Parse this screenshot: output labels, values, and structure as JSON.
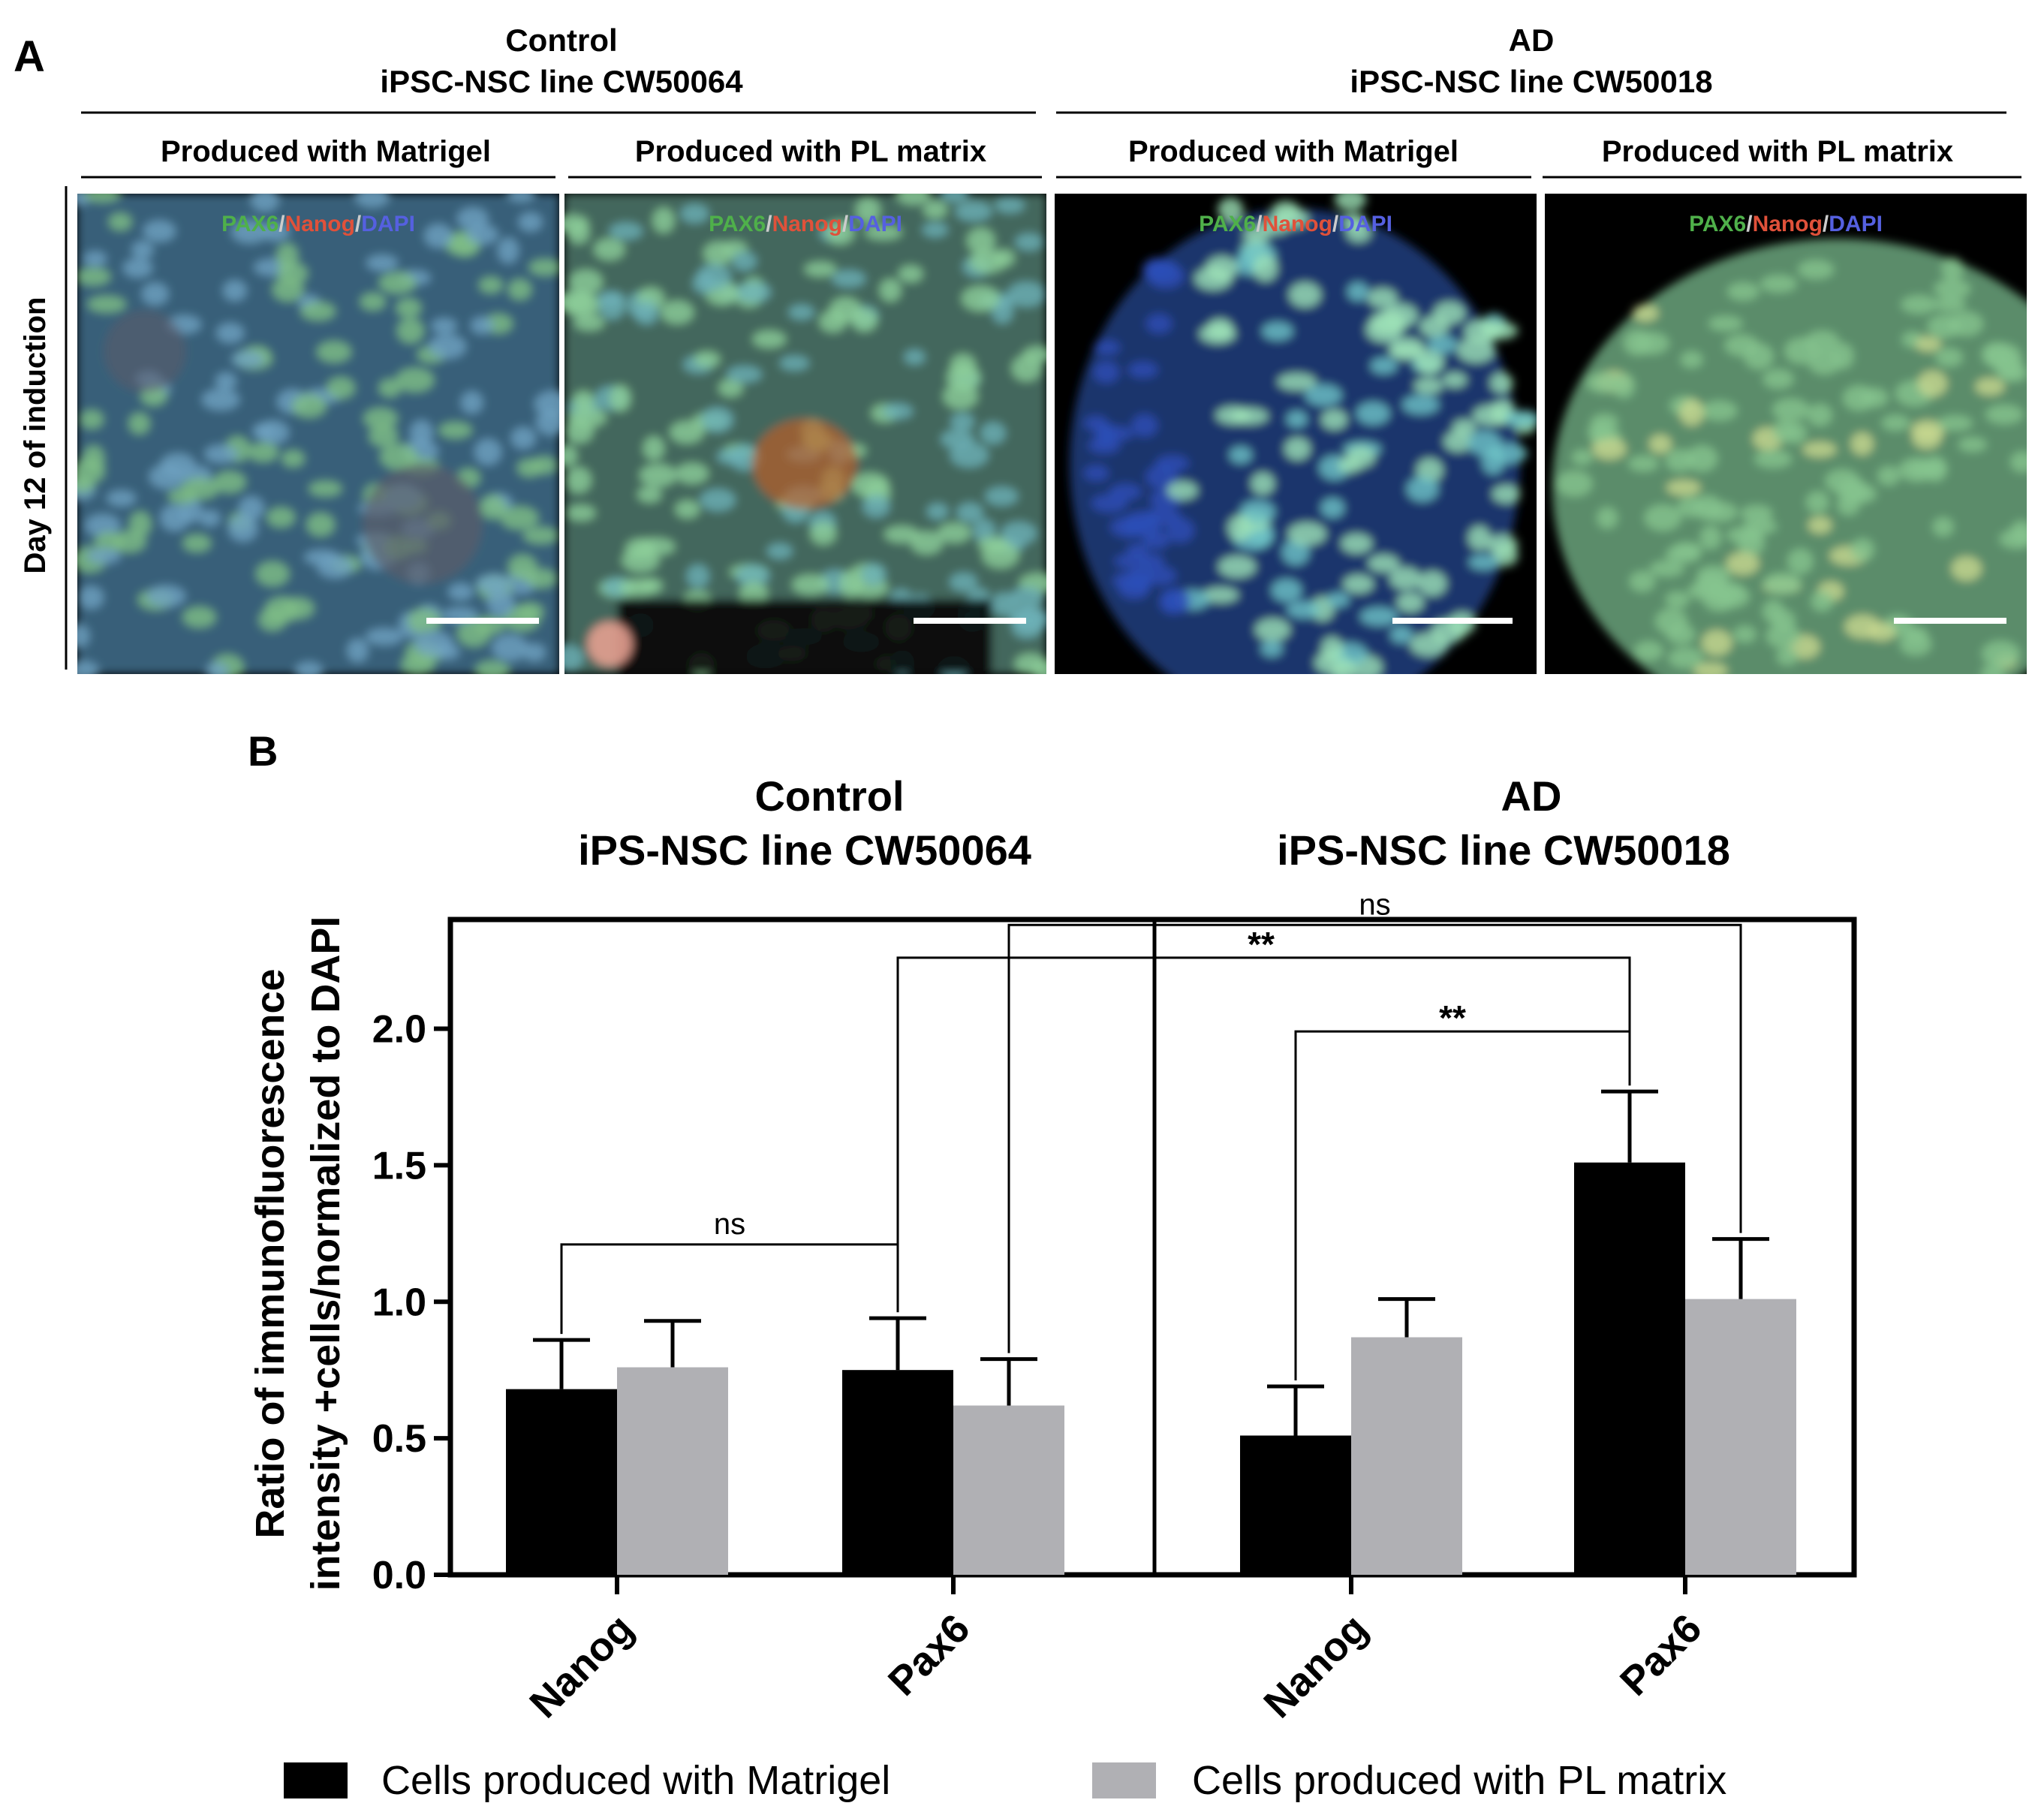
{
  "panel_a": {
    "label": "A",
    "row_label": "Day 12 of induction",
    "groups": [
      {
        "name": "Control",
        "line": "iPSC-NSC line CW50064",
        "sub": [
          "Produced with Matrigel",
          "Produced with PL matrix"
        ]
      },
      {
        "name": "AD",
        "line": "iPSC-NSC line CW50018",
        "sub": [
          "Produced with Matrigel",
          "Produced with PL matrix"
        ]
      }
    ],
    "stain_labels": {
      "pax6": "PAX6",
      "sep": "/",
      "nanog": "Nanog",
      "dapi": "DAPI"
    },
    "colors": {
      "pax6": "#4fb04a",
      "nanog": "#e0513a",
      "dapi": "#5560e0"
    },
    "images": [
      {
        "tone": "matrigel-control"
      },
      {
        "tone": "pl-control"
      },
      {
        "tone": "matrigel-ad"
      },
      {
        "tone": "pl-ad"
      }
    ]
  },
  "panel_b": {
    "label": "B",
    "group_titles": [
      {
        "name": "Control",
        "line": "iPS-NSC line CW50064"
      },
      {
        "name": "AD",
        "line": "iPS-NSC line CW50018"
      }
    ],
    "ylabel_lines": [
      "Ratio of immunofluorescence",
      "intensity +cells/normalized to DAPI"
    ],
    "legend": [
      {
        "label": "Cells produced with Matrigel",
        "color": "#000000"
      },
      {
        "label": "Cells produced with PL matrix",
        "color": "#b0b0b4"
      }
    ],
    "significance": [
      {
        "label": "ns",
        "from": "Control-Nanog-Matrigel",
        "to": "Control-Pax6-Matrigel"
      },
      {
        "label": "ns",
        "from": "Control-Pax6-PL",
        "to": "AD-Pax6-PL"
      },
      {
        "label": "**",
        "from": "Control-Pax6-Matrigel",
        "to": "AD-Pax6-Matrigel"
      },
      {
        "label": "**",
        "from": "AD-Nanog-Matrigel",
        "to": "AD-Pax6-Matrigel"
      }
    ]
  },
  "chart_data": {
    "type": "bar",
    "categories": [
      "Nanog",
      "Pax6",
      "Nanog",
      "Pax6"
    ],
    "category_groups": [
      "Control",
      "Control",
      "AD",
      "AD"
    ],
    "series": [
      {
        "name": "Cells produced with Matrigel",
        "color": "#000000",
        "values": [
          0.68,
          0.75,
          0.51,
          1.51
        ],
        "errors": [
          0.18,
          0.19,
          0.18,
          0.26
        ]
      },
      {
        "name": "Cells produced with PL matrix",
        "color": "#b0b0b4",
        "values": [
          0.76,
          0.62,
          0.87,
          1.01
        ],
        "errors": [
          0.17,
          0.17,
          0.14,
          0.22
        ]
      }
    ],
    "yticks": [
      0.0,
      0.5,
      1.0,
      1.5,
      2.0
    ],
    "ytick_labels": [
      "0.0",
      "0.5",
      "1.0",
      "1.5",
      "2.0"
    ],
    "ylim": [
      0,
      2.4
    ],
    "ylabel": "Ratio of immunofluorescence intensity +cells/normalized to DAPI",
    "xlabel": "",
    "legend_position": "bottom",
    "grid": false
  }
}
